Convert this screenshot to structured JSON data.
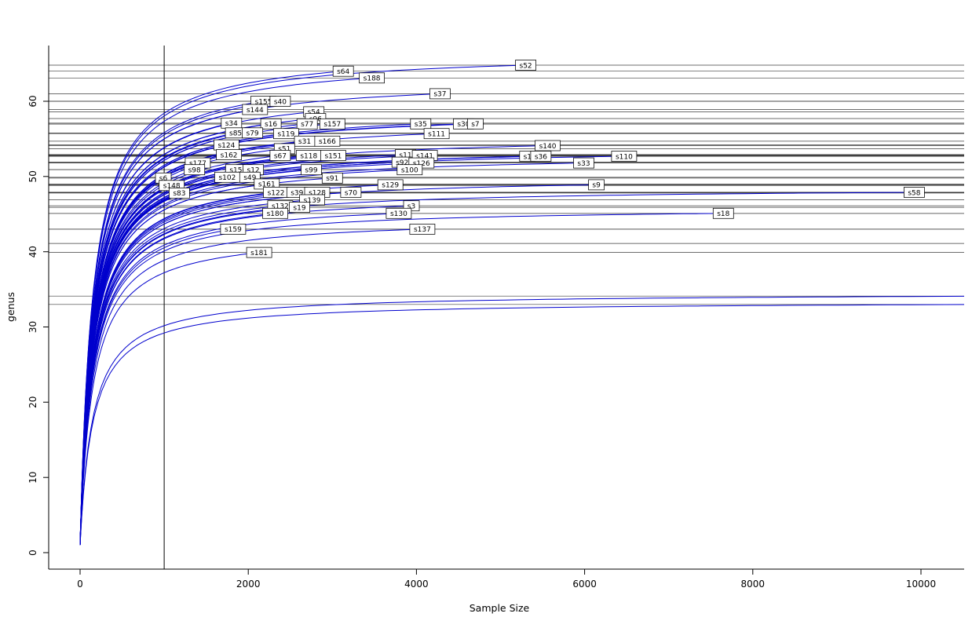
{
  "figure": {
    "background": "#ffffff"
  },
  "chart_data": {
    "type": "line",
    "title": "",
    "xlabel": "Sample Size",
    "ylabel": "genus",
    "xlim": [
      0,
      10500
    ],
    "ylim": [
      0,
      67
    ],
    "x_tick_values": [
      0,
      2000,
      4000,
      6000,
      8000,
      10000
    ],
    "x_tick_labels": [
      "0",
      "2000",
      "4000",
      "6000",
      "8000",
      "10000"
    ],
    "y_tick_values": [
      0,
      10,
      20,
      30,
      40,
      50,
      60
    ],
    "y_tick_labels": [
      "0",
      "10",
      "20",
      "30",
      "40",
      "50",
      "60"
    ],
    "grid": false,
    "legend": "none",
    "vline_x": 1000,
    "curve_color": "#0000CD",
    "hline_color": "#3d3d3d",
    "axis_color": "#000000",
    "label_box_fill": "#ffffff",
    "label_box_stroke": "#000000",
    "extra_hlines": [
      41.1
    ],
    "series": [
      {
        "name": "s52",
        "xend": 5300,
        "yend": 64.8
      },
      {
        "name": "s64",
        "xend": 3130,
        "yend": 64.0
      },
      {
        "name": "s188",
        "xend": 3470,
        "yend": 63.1
      },
      {
        "name": "s37",
        "xend": 4280,
        "yend": 61.0
      },
      {
        "name": "s155",
        "xend": 2180,
        "yend": 60.0
      },
      {
        "name": "s40",
        "xend": 2380,
        "yend": 60.0
      },
      {
        "name": "s144",
        "xend": 2080,
        "yend": 58.9
      },
      {
        "name": "s54",
        "xend": 2780,
        "yend": 58.6
      },
      {
        "name": "s96",
        "xend": 2800,
        "yend": 57.7
      },
      {
        "name": "s34",
        "xend": 1800,
        "yend": 57.1
      },
      {
        "name": "s16",
        "xend": 2270,
        "yend": 57.0
      },
      {
        "name": "s77",
        "xend": 2700,
        "yend": 57.0
      },
      {
        "name": "s157",
        "xend": 3000,
        "yend": 57.0
      },
      {
        "name": "s35",
        "xend": 4050,
        "yend": 57.0
      },
      {
        "name": "s30",
        "xend": 4560,
        "yend": 57.0
      },
      {
        "name": "s7",
        "xend": 4700,
        "yend": 57.0
      },
      {
        "name": "s85",
        "xend": 1850,
        "yend": 55.8
      },
      {
        "name": "s79",
        "xend": 2050,
        "yend": 55.8
      },
      {
        "name": "s119",
        "xend": 2450,
        "yend": 55.7
      },
      {
        "name": "s111",
        "xend": 4240,
        "yend": 55.7
      },
      {
        "name": "s31",
        "xend": 2670,
        "yend": 54.7
      },
      {
        "name": "s166",
        "xend": 2940,
        "yend": 54.7
      },
      {
        "name": "s124",
        "xend": 1740,
        "yend": 54.2
      },
      {
        "name": "s51",
        "xend": 2430,
        "yend": 53.7
      },
      {
        "name": "s140",
        "xend": 5560,
        "yend": 54.1
      },
      {
        "name": "s162",
        "xend": 1770,
        "yend": 52.9
      },
      {
        "name": "s67",
        "xend": 2380,
        "yend": 52.8
      },
      {
        "name": "s118",
        "xend": 2720,
        "yend": 52.8
      },
      {
        "name": "s151",
        "xend": 3010,
        "yend": 52.8
      },
      {
        "name": "s11",
        "xend": 3870,
        "yend": 52.9
      },
      {
        "name": "s141",
        "xend": 4100,
        "yend": 52.8
      },
      {
        "name": "s1",
        "xend": 5320,
        "yend": 52.7
      },
      {
        "name": "s36",
        "xend": 5480,
        "yend": 52.7
      },
      {
        "name": "s110",
        "xend": 6470,
        "yend": 52.7
      },
      {
        "name": "s177",
        "xend": 1400,
        "yend": 51.8
      },
      {
        "name": "s92",
        "xend": 3830,
        "yend": 51.9
      },
      {
        "name": "s126",
        "xend": 4060,
        "yend": 51.8
      },
      {
        "name": "s33",
        "xend": 5990,
        "yend": 51.8
      },
      {
        "name": "s98",
        "xend": 1360,
        "yend": 50.9
      },
      {
        "name": "s156",
        "xend": 1880,
        "yend": 50.9
      },
      {
        "name": "s12",
        "xend": 2060,
        "yend": 50.9
      },
      {
        "name": "s99",
        "xend": 2750,
        "yend": 50.9
      },
      {
        "name": "s100",
        "xend": 3920,
        "yend": 50.9
      },
      {
        "name": "s6",
        "xend": 990,
        "yend": 49.8
      },
      {
        "name": "s102",
        "xend": 1750,
        "yend": 49.9
      },
      {
        "name": "s49",
        "xend": 2020,
        "yend": 49.9
      },
      {
        "name": "s91",
        "xend": 3000,
        "yend": 49.8
      },
      {
        "name": "s148",
        "xend": 1090,
        "yend": 48.8
      },
      {
        "name": "s161",
        "xend": 2220,
        "yend": 49.0
      },
      {
        "name": "s129",
        "xend": 3690,
        "yend": 48.9
      },
      {
        "name": "s9",
        "xend": 6140,
        "yend": 48.9
      },
      {
        "name": "s83",
        "xend": 1180,
        "yend": 47.8
      },
      {
        "name": "s122",
        "xend": 2330,
        "yend": 47.9
      },
      {
        "name": "s39",
        "xend": 2580,
        "yend": 47.9
      },
      {
        "name": "s128",
        "xend": 2820,
        "yend": 47.9
      },
      {
        "name": "s70",
        "xend": 3220,
        "yend": 47.9
      },
      {
        "name": "s58",
        "xend": 9920,
        "yend": 47.9
      },
      {
        "name": "s139",
        "xend": 2760,
        "yend": 46.9
      },
      {
        "name": "s132",
        "xend": 2380,
        "yend": 46.1
      },
      {
        "name": "s19",
        "xend": 2610,
        "yend": 45.9
      },
      {
        "name": "s3",
        "xend": 3940,
        "yend": 46.1
      },
      {
        "name": "s180",
        "xend": 2320,
        "yend": 45.1
      },
      {
        "name": "s130",
        "xend": 3790,
        "yend": 45.1
      },
      {
        "name": "s18",
        "xend": 7650,
        "yend": 45.1
      },
      {
        "name": "s159",
        "xend": 1820,
        "yend": 43.0
      },
      {
        "name": "s137",
        "xend": 4070,
        "yend": 43.0
      },
      {
        "name": "s181",
        "xend": 2130,
        "yend": 39.9
      },
      {
        "name": "",
        "xend": 11000,
        "yend": 34.1
      },
      {
        "name": "",
        "xend": 11000,
        "yend": 33.0
      }
    ]
  }
}
